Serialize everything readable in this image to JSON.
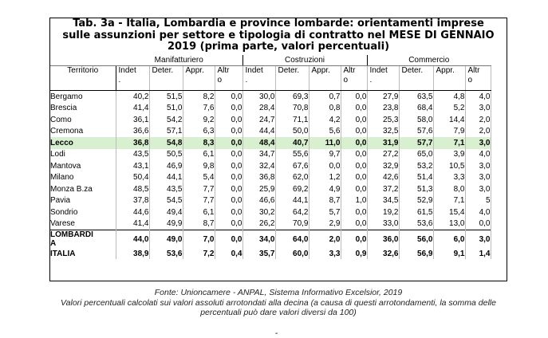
{
  "title": {
    "line1": "Tab. 3a - Italia, Lombardia e province lombarde: orientamenti imprese",
    "line2": "sulle assunzioni  per settore e tipologia di contratto nel MESE DI GENNAIO",
    "line3": "2019 (prima parte, valori percentuali)"
  },
  "table": {
    "territory_header": "Territorio",
    "sectors": [
      "Manifatturiero",
      "Costruzioni",
      "Commercio"
    ],
    "subcolumns": [
      "Indet\n.",
      "Deter.",
      "Appr.",
      "Altr\no"
    ],
    "rows": [
      {
        "name": "Bergamo",
        "values": [
          "40,2",
          "51,5",
          "8,2",
          "0,0",
          "30,0",
          "69,3",
          "0,7",
          "0,0",
          "27,9",
          "63,5",
          "4,8",
          "4,0"
        ]
      },
      {
        "name": "Brescia",
        "values": [
          "41,4",
          "51,0",
          "7,6",
          "0,0",
          "28,4",
          "70,8",
          "0,8",
          "0,0",
          "23,8",
          "68,4",
          "5,2",
          "3,0"
        ]
      },
      {
        "name": "Como",
        "values": [
          "36,1",
          "54,2",
          "9,2",
          "0,0",
          "24,7",
          "71,1",
          "4,2",
          "0,0",
          "25,3",
          "58,0",
          "14,4",
          "2,0"
        ]
      },
      {
        "name": "Cremona",
        "values": [
          "36,6",
          "57,1",
          "6,3",
          "0,0",
          "44,4",
          "50,0",
          "5,6",
          "0,0",
          "32,5",
          "57,6",
          "7,9",
          "2,0"
        ]
      },
      {
        "name": "Lecco",
        "values": [
          "36,8",
          "54,8",
          "8,3",
          "0,0",
          "48,4",
          "40,7",
          "11,0",
          "0,0",
          "31,9",
          "57,7",
          "7,1",
          "3,0"
        ],
        "highlight": true
      },
      {
        "name": "Lodi",
        "values": [
          "43,5",
          "50,5",
          "6,1",
          "0,0",
          "34,7",
          "55,6",
          "9,7",
          "0,0",
          "27,2",
          "65,0",
          "3,9",
          "4,0"
        ]
      },
      {
        "name": "Mantova",
        "values": [
          "43,1",
          "46,9",
          "9,8",
          "0,0",
          "32,4",
          "67,6",
          "0,0",
          "0,0",
          "32,9",
          "53,2",
          "10,5",
          "3,0"
        ]
      },
      {
        "name": "Milano",
        "values": [
          "50,4",
          "44,1",
          "5,4",
          "0,0",
          "36,8",
          "62,0",
          "1,2",
          "0,0",
          "42,6",
          "51,4",
          "3,3",
          "3,0"
        ]
      },
      {
        "name": "Monza B.za",
        "values": [
          "48,5",
          "43,5",
          "7,7",
          "0,0",
          "25,9",
          "69,2",
          "4,9",
          "0,0",
          "37,2",
          "51,3",
          "8,0",
          "3,0"
        ]
      },
      {
        "name": "Pavia",
        "values": [
          "37,8",
          "54,5",
          "7,7",
          "0,0",
          "46,6",
          "44,1",
          "8,7",
          "1,0",
          "34,5",
          "52,9",
          "7,1",
          "5"
        ]
      },
      {
        "name": "Sondrio",
        "values": [
          "44,6",
          "49,4",
          "6,1",
          "0,0",
          "30,2",
          "64,2",
          "5,7",
          "0,0",
          "19,2",
          "61,5",
          "15,4",
          "4,0"
        ]
      },
      {
        "name": "Varese",
        "values": [
          "41,4",
          "49,9",
          "8,7",
          "0,0",
          "26,2",
          "70,9",
          "2,9",
          "0,0",
          "33,0",
          "53,6",
          "13,0",
          "0,0"
        ]
      }
    ],
    "totals": [
      {
        "name": "LOMBARDI\nA",
        "values": [
          "44,0",
          "49,0",
          "7,0",
          "0,0",
          "34,0",
          "64,0",
          "2,0",
          "0,0",
          "36,0",
          "56,0",
          "6,0",
          "3,0"
        ]
      },
      {
        "name": "ITALIA",
        "values": [
          "38,9",
          "53,6",
          "7,2",
          "0,4",
          "35,7",
          "60,0",
          "3,3",
          "0,9",
          "32,6",
          "56,9",
          "9,1",
          "1,4"
        ]
      }
    ]
  },
  "footer": {
    "source": "Fonte: Unioncamere - ANPAL, Sistema Informativo Excelsior, 2019",
    "note": "Valori percentuali calcolati sui valori assoluti arrotondati alla decina (a causa di questi arrotondamenti, la somma delle percentuali può dare valori diversi da 100)",
    "dash": "-"
  }
}
